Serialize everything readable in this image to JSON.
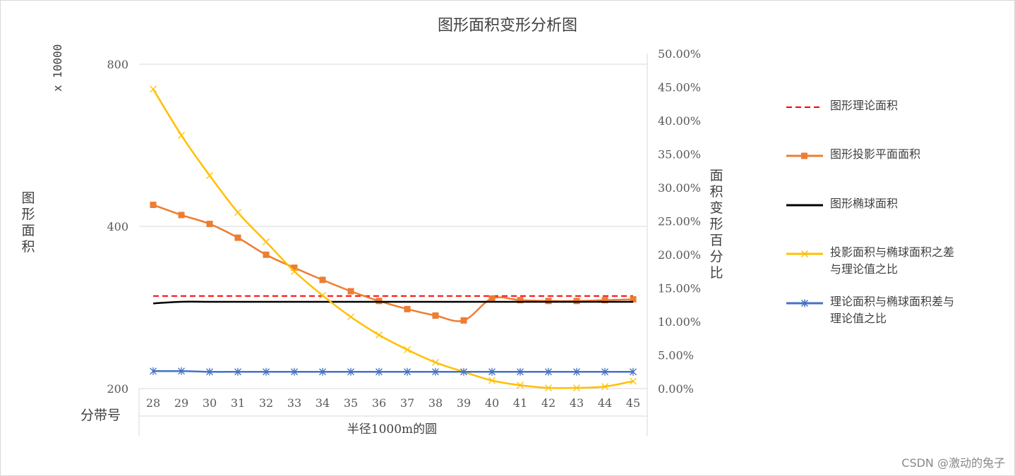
{
  "chart_data": {
    "type": "line",
    "title": "图形面积变形分析图",
    "y_left_label": "图形面积",
    "y_left_scale": "x 10000",
    "y_right_label": "面积变形百分比",
    "x_category_label": "分带号",
    "xlabel": "半径1000m的圆",
    "categories": [
      "28",
      "29",
      "30",
      "31",
      "32",
      "33",
      "34",
      "35",
      "36",
      "37",
      "38",
      "39",
      "40",
      "41",
      "42",
      "43",
      "44",
      "45"
    ],
    "y_left_ticks": [
      "800",
      "400",
      "200"
    ],
    "y_left_tick_values": [
      800,
      400,
      200
    ],
    "y_right_ticks": [
      "50.00%",
      "45.00%",
      "40.00%",
      "35.00%",
      "30.00%",
      "25.00%",
      "20.00%",
      "15.00%",
      "10.00%",
      "5.00%",
      "0.00%"
    ],
    "y_right_range": [
      0,
      0.5
    ],
    "grid": true,
    "legend_position": "right",
    "series": [
      {
        "name": "图形理论面积",
        "axis": "left",
        "color": "#ff0000",
        "style": "dashed",
        "marker": "none",
        "values": [
          314.16,
          314.16,
          314.16,
          314.16,
          314.16,
          314.16,
          314.16,
          314.16,
          314.16,
          314.16,
          314.16,
          314.16,
          314.16,
          314.16,
          314.16,
          314.16,
          314.16,
          314.16
        ]
      },
      {
        "name": "图形投影平面面积",
        "axis": "left",
        "color": "#ed7d31",
        "style": "solid",
        "marker": "square",
        "values": [
          453,
          428,
          406,
          386,
          365,
          349,
          334,
          320,
          308,
          298,
          290,
          284,
          311,
          309,
          308,
          308,
          309,
          310
        ]
      },
      {
        "name": "图形椭球面积",
        "axis": "left",
        "color": "#000000",
        "style": "solid",
        "marker": "none",
        "values": [
          305,
          307,
          307,
          307,
          307,
          307,
          307,
          307,
          307,
          307,
          307,
          307,
          307,
          307,
          307,
          307,
          307,
          307
        ]
      },
      {
        "name": "投影面积与椭球面积之差与理论值之比",
        "axis": "right",
        "color": "#ffc000",
        "style": "solid",
        "marker": "x",
        "values": [
          0.447,
          0.378,
          0.318,
          0.263,
          0.219,
          0.175,
          0.139,
          0.107,
          0.08,
          0.058,
          0.039,
          0.025,
          0.012,
          0.005,
          0.001,
          0.001,
          0.003,
          0.011
        ]
      },
      {
        "name": "理论面积与椭球面积差与理论值之比",
        "axis": "right",
        "color": "#4472c4",
        "style": "solid",
        "marker": "star",
        "values": [
          0.026,
          0.026,
          0.025,
          0.025,
          0.025,
          0.025,
          0.025,
          0.025,
          0.025,
          0.025,
          0.025,
          0.025,
          0.025,
          0.025,
          0.025,
          0.025,
          0.025,
          0.025
        ]
      }
    ]
  },
  "legend": {
    "items": [
      {
        "line1": "图形理论面积",
        "line2": ""
      },
      {
        "line1": "图形投影平面面积",
        "line2": ""
      },
      {
        "line1": "图形椭球面积",
        "line2": ""
      },
      {
        "line1": "投影面积与椭球面积之差",
        "line2": "与理论值之比"
      },
      {
        "line1": "理论面积与椭球面积差与",
        "line2": "理论值之比"
      }
    ]
  },
  "watermark": "CSDN @激动的兔子"
}
